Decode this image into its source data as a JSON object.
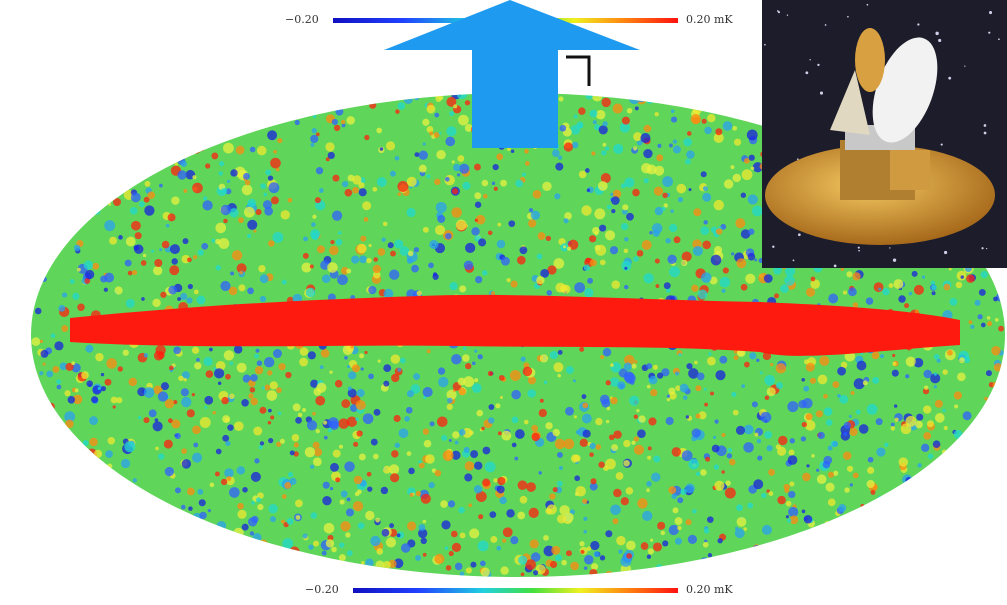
{
  "colorbars": [
    {
      "min_label": "−0.20",
      "max_label": "0.20 mK"
    },
    {
      "min_label": "−0.20",
      "max_label": "0.20 mK"
    }
  ]
}
